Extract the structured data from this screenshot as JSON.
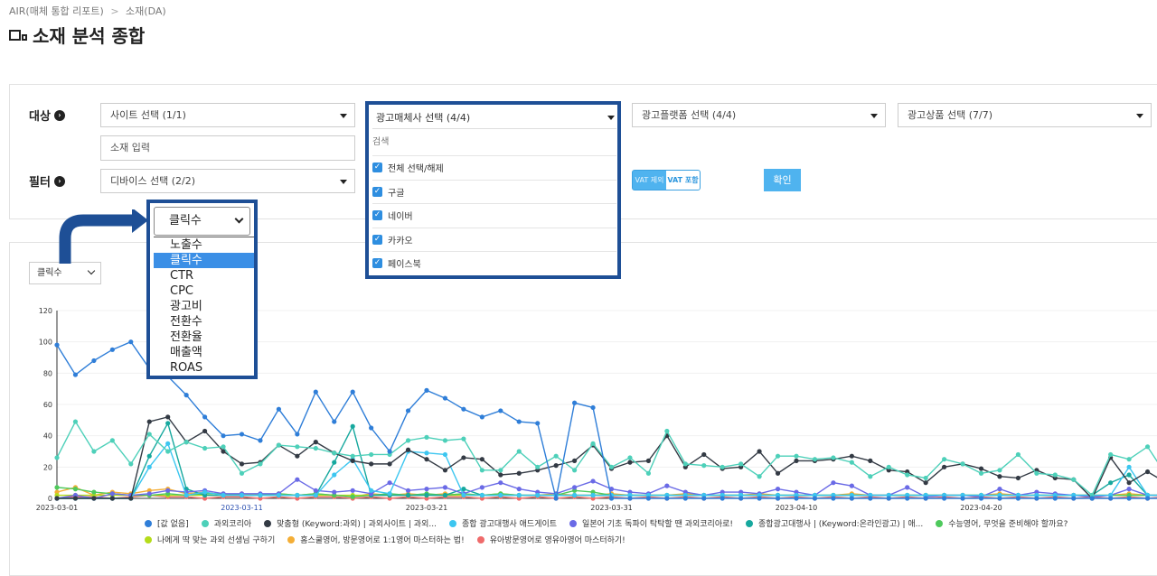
{
  "breadcrumb": {
    "root": "AIR(매체 통합 리포트)",
    "sep": ">",
    "current": "소재(DA)"
  },
  "page_title": "소재 분석 종합",
  "filters": {
    "target_label": "대상",
    "filter_label": "필터",
    "site_select": "사이트 선택 (1/1)",
    "media_select": "광고매체사 선택 (4/4)",
    "platform_select": "광고플랫폼 선택 (4/4)",
    "product_select": "광고상품 선택 (7/7)",
    "creative_input": "소재 입력",
    "device_select": "디바이스 선택 (2/2)",
    "vat_off": "VAT 제외",
    "vat_on": "VAT 포함",
    "confirm": "확인"
  },
  "media_dropdown": {
    "header": "광고매체사 선택 (4/4)",
    "search": "검색",
    "items": [
      {
        "label": "전체 선택/해제",
        "checked": true
      },
      {
        "label": "구글",
        "checked": true
      },
      {
        "label": "네이버",
        "checked": true
      },
      {
        "label": "카카오",
        "checked": true
      },
      {
        "label": "페이스북",
        "checked": true
      }
    ]
  },
  "metric_dropdown": {
    "selected": "클릭수",
    "options": [
      "노출수",
      "클릭수",
      "CTR",
      "CPC",
      "광고비",
      "전환수",
      "전환율",
      "매출액",
      "ROAS"
    ]
  },
  "chart_metric_select": "클릭수",
  "chart_data": {
    "type": "line",
    "xlabels": [
      "2023-03-01",
      "2023-03-11",
      "2023-03-21",
      "2023-03-31",
      "2023-04-10",
      "2023-04-20"
    ],
    "yticks": [
      0,
      20,
      40,
      60,
      80,
      100,
      120
    ],
    "ylim": [
      0,
      120
    ],
    "n_points": 61,
    "series": [
      {
        "name": "[값 없음]",
        "color": "#2f7ed8",
        "values": [
          98,
          79,
          88,
          95,
          100,
          83,
          78,
          66,
          52,
          40,
          41,
          37,
          57,
          41,
          68,
          49,
          68,
          45,
          30,
          56,
          69,
          64,
          57,
          52,
          56,
          49,
          48,
          0,
          61,
          58,
          0,
          0,
          0,
          0,
          0,
          0,
          0,
          0,
          0,
          0,
          0,
          0,
          0,
          0,
          0,
          0,
          0,
          0,
          0,
          0,
          0,
          0,
          0,
          0,
          0,
          0,
          0,
          0,
          0,
          0,
          0
        ]
      },
      {
        "name": "과외코리아",
        "color": "#4dd0b9",
        "values": [
          26,
          49,
          30,
          37,
          22,
          41,
          30,
          36,
          32,
          33,
          16,
          22,
          34,
          33,
          32,
          29,
          27,
          28,
          28,
          37,
          39,
          37,
          38,
          18,
          18,
          30,
          20,
          27,
          18,
          35,
          20,
          26,
          16,
          43,
          22,
          21,
          20,
          22,
          14,
          27,
          27,
          25,
          26,
          23,
          14,
          20,
          15,
          13,
          25,
          22,
          16,
          18,
          28,
          16,
          15,
          12,
          2,
          28,
          25,
          33,
          15
        ]
      },
      {
        "name": "맞춤형 (Keyword:과외) | 과외사이트 | 과외...",
        "color": "#333a44",
        "values": [
          0,
          0,
          0,
          0,
          0,
          49,
          52,
          36,
          43,
          30,
          22,
          23,
          34,
          27,
          36,
          29,
          24,
          22,
          22,
          31,
          25,
          18,
          26,
          25,
          15,
          16,
          18,
          21,
          24,
          34,
          19,
          23,
          24,
          40,
          20,
          28,
          19,
          20,
          30,
          16,
          24,
          24,
          25,
          27,
          24,
          18,
          17,
          10,
          20,
          22,
          19,
          14,
          13,
          18,
          13,
          12,
          0,
          26,
          10,
          17,
          10
        ]
      },
      {
        "name": "종합 광고대행사 애드게이트",
        "color": "#3cc6f0",
        "values": [
          0,
          0,
          0,
          0,
          0,
          20,
          35,
          2,
          4,
          2,
          2,
          2,
          2,
          2,
          2,
          15,
          25,
          5,
          3,
          30,
          29,
          28,
          2,
          2,
          2,
          2,
          2,
          2,
          2,
          2,
          2,
          2,
          2,
          2,
          2,
          2,
          2,
          2,
          2,
          2,
          2,
          2,
          2,
          2,
          2,
          2,
          2,
          2,
          2,
          2,
          2,
          2,
          2,
          2,
          2,
          2,
          2,
          2,
          20,
          2,
          2
        ]
      },
      {
        "name": "일본어 기초 독파이 탁탁할 땐 과외코리아로!",
        "color": "#6a6ae6",
        "values": [
          0,
          2,
          0,
          3,
          2,
          3,
          5,
          4,
          5,
          3,
          3,
          3,
          3,
          12,
          5,
          4,
          5,
          3,
          10,
          5,
          6,
          7,
          3,
          7,
          10,
          6,
          4,
          3,
          7,
          11,
          6,
          4,
          3,
          8,
          4,
          2,
          4,
          4,
          3,
          6,
          4,
          2,
          10,
          8,
          2,
          2,
          7,
          1,
          2,
          2,
          1,
          6,
          2,
          4,
          3,
          2,
          1,
          2,
          6,
          2,
          2
        ]
      },
      {
        "name": "종합광고대행사 | (Keyword:온라인광고) | 애...",
        "color": "#16a89e",
        "values": [
          0,
          0,
          0,
          0,
          0,
          27,
          48,
          6,
          2,
          2,
          2,
          2,
          2,
          2,
          2,
          23,
          46,
          2,
          2,
          2,
          2,
          2,
          6,
          2,
          2,
          2,
          2,
          2,
          2,
          2,
          2,
          2,
          2,
          2,
          2,
          2,
          2,
          2,
          2,
          2,
          2,
          2,
          2,
          2,
          2,
          2,
          2,
          2,
          2,
          2,
          2,
          2,
          2,
          2,
          2,
          2,
          2,
          10,
          15,
          2,
          2
        ]
      },
      {
        "name": "수능영어, 무엇을 준비해야 할까요?",
        "color": "#4ec95c",
        "values": [
          7,
          6,
          4,
          3,
          2,
          2,
          3,
          2,
          3,
          3,
          2,
          2,
          3,
          2,
          3,
          2,
          1,
          2,
          3,
          2,
          3,
          2,
          3,
          2,
          3,
          2,
          2,
          2,
          5,
          4,
          2,
          2,
          2,
          2,
          2,
          2,
          2,
          2,
          2,
          2,
          2,
          2,
          2,
          2,
          2,
          2,
          2,
          2,
          2,
          2,
          2,
          2,
          2,
          2,
          2,
          2,
          2,
          2,
          2,
          2,
          2
        ]
      },
      {
        "name": "나에게 딱 맞는 과외 선생님 구하기",
        "color": "#b5dc1a",
        "values": [
          2,
          2,
          2,
          2,
          2,
          2,
          2,
          2,
          2,
          2,
          2,
          2,
          2,
          2,
          2,
          2,
          2,
          2,
          2,
          2,
          2,
          2,
          2,
          2,
          2,
          2,
          2,
          2,
          2,
          2,
          2,
          2,
          2,
          2,
          2,
          2,
          2,
          2,
          2,
          2,
          2,
          2,
          2,
          2,
          2,
          2,
          2,
          2,
          2,
          2,
          2,
          2,
          2,
          2,
          2,
          2,
          2,
          2,
          2,
          2,
          2
        ]
      },
      {
        "name": "홈스쿨영어, 방문영어로 1:1영어 마스터하는 법!",
        "color": "#f4ae36",
        "values": [
          4,
          7,
          2,
          4,
          3,
          5,
          6,
          3,
          4,
          2,
          3,
          2,
          3,
          2,
          3,
          2,
          1,
          3,
          2,
          3,
          2,
          3,
          2,
          2,
          3,
          2,
          2,
          3,
          2,
          2,
          3,
          2,
          2,
          2,
          3,
          2,
          2,
          2,
          3,
          2,
          2,
          2,
          2,
          3,
          2,
          2,
          2,
          2,
          2,
          2,
          2,
          3,
          2,
          2,
          2,
          2,
          2,
          2,
          3,
          2,
          2
        ]
      },
      {
        "name": "유아방문영어로 영유아영어 마스터하기!",
        "color": "#ef6b6b",
        "values": [
          0,
          1,
          1,
          0,
          1,
          2,
          1,
          1,
          0,
          1,
          1,
          0,
          1,
          0,
          1,
          1,
          0,
          1,
          0,
          1,
          0,
          1,
          1,
          0,
          1,
          0,
          1,
          0,
          1,
          0,
          1,
          0,
          1,
          0,
          1,
          0,
          1,
          0,
          1,
          0,
          1,
          0,
          1,
          0,
          1,
          0,
          1,
          0,
          1,
          0,
          1,
          0,
          1,
          0,
          1,
          0,
          1,
          0,
          1,
          0,
          1
        ]
      }
    ]
  }
}
